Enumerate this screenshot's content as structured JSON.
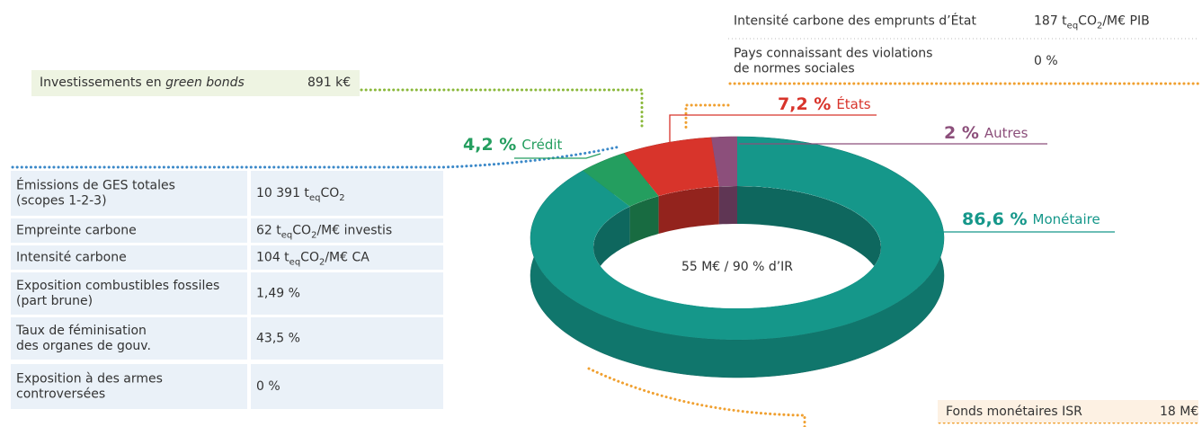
{
  "chart_data": {
    "type": "pie",
    "donut": true,
    "center_label": "55 M€ / 90 % d’IR",
    "categories": [
      "Monétaire",
      "Crédit",
      "États",
      "Autres"
    ],
    "values": [
      86.6,
      4.2,
      7.2,
      2
    ],
    "value_labels": [
      "86,6 %",
      "4,2 %",
      "7,2 %",
      "2 %"
    ],
    "colors": [
      "#15978a",
      "#249e5f",
      "#d8342b",
      "#8c4f7b"
    ]
  },
  "green_bonds": {
    "label": [
      "Investissements en ",
      "green bonds"
    ],
    "value": "891 k€"
  },
  "emissions_table": {
    "rows": [
      {
        "label": [
          "Émissions de GES totales",
          "(scopes 1-2-3)"
        ],
        "value": [
          "10 391 t",
          "eq",
          "CO",
          "2"
        ]
      },
      {
        "label": [
          "Empreinte carbone"
        ],
        "value": [
          "62 t",
          "eq",
          "CO",
          "2",
          "/M€ investis"
        ]
      },
      {
        "label": [
          "Intensité carbone"
        ],
        "value": [
          "104 t",
          "eq",
          "CO",
          "2",
          "/M€ CA"
        ]
      },
      {
        "label": [
          "Exposition combustibles fossiles",
          "(part brune)"
        ],
        "value": [
          "1,49 %"
        ]
      },
      {
        "label": [
          "Taux de féminisation",
          "des organes de gouv."
        ],
        "value": [
          "43,5 %"
        ]
      },
      {
        "label": [
          "Exposition à des armes",
          "controversées"
        ],
        "value": [
          "0 %"
        ]
      }
    ]
  },
  "sovereign_table": {
    "rows": [
      {
        "label": [
          "Intensité carbone des emprunts d’État"
        ],
        "value": [
          "187 t",
          "eq",
          "CO",
          "2",
          "/M€ PIB"
        ]
      },
      {
        "label": [
          "Pays connaissant des violations",
          "de normes sociales"
        ],
        "value": [
          "0 %"
        ]
      }
    ]
  },
  "money_fund": {
    "label": "Fonds monétaires ISR",
    "value": "18 M€"
  }
}
